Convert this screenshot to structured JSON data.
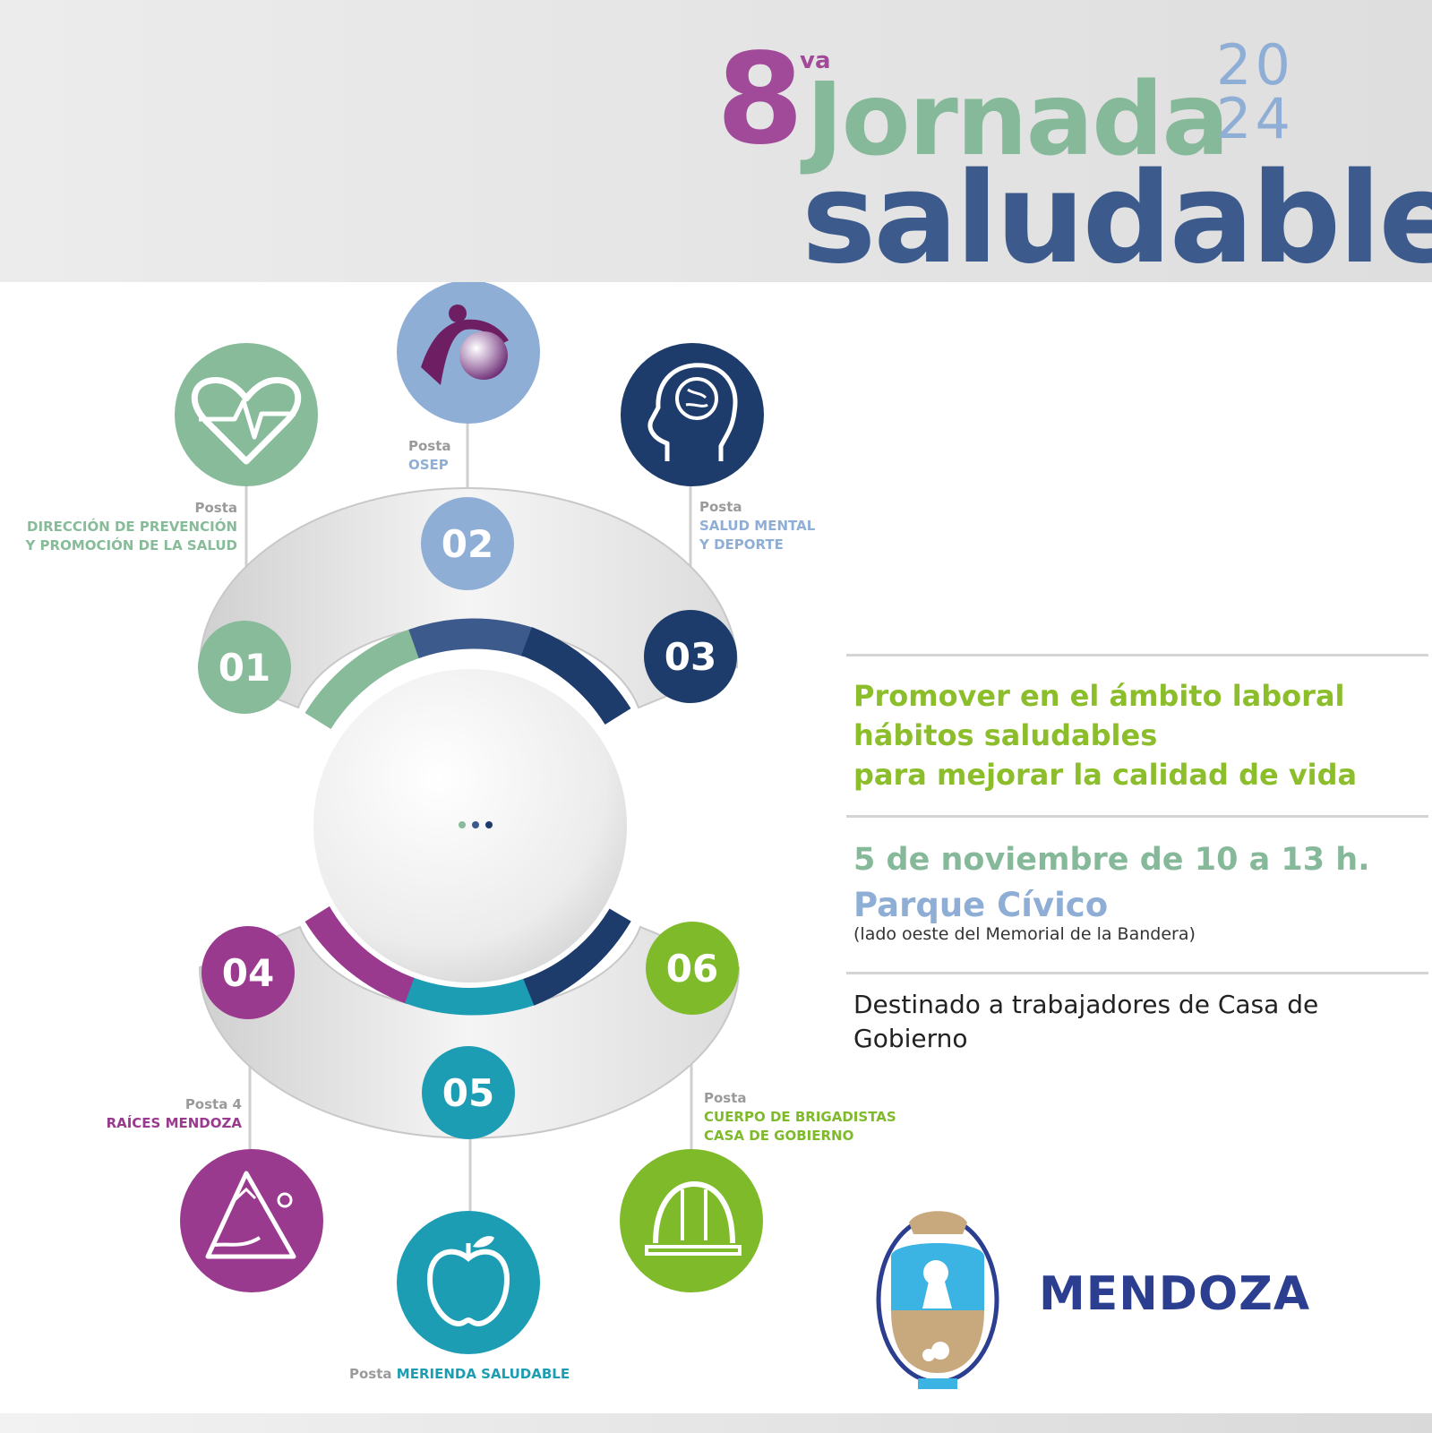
{
  "header": {
    "number": "8",
    "ordinal": "va",
    "title_line1": "Jornada",
    "year_top": "20",
    "year_bottom": "24",
    "title_line2": "saludable"
  },
  "colors": {
    "green": "#87bb99",
    "lightblue": "#8faed6",
    "navy": "#1d3b6b",
    "purple": "#993a8f",
    "teal": "#1c9db3",
    "lime": "#7fba2a",
    "title_blue": "#3d5a8c",
    "slogan_green": "#8cbe2b",
    "date_green": "#86b99a"
  },
  "stations": [
    {
      "number": "01",
      "posta": "Posta",
      "name_line1": "DIRECCIÓN DE PREVENCIÓN",
      "name_line2": "Y PROMOCIÓN DE LA SALUD",
      "icon": "heart-pulse-icon"
    },
    {
      "number": "02",
      "posta": "Posta",
      "name_line1": "OSEP",
      "name_line2": "",
      "icon": "osep-logo-icon"
    },
    {
      "number": "03",
      "posta": "Posta",
      "name_line1": "SALUD MENTAL",
      "name_line2": "Y DEPORTE",
      "icon": "brain-head-icon"
    },
    {
      "number": "04",
      "posta": "Posta 4",
      "name_line1": "RAÍCES MENDOZA",
      "name_line2": "",
      "icon": "mountain-hand-icon"
    },
    {
      "number": "05",
      "posta": "Posta",
      "name_line1": "MERIENDA SALUDABLE",
      "name_line2": "",
      "icon": "apple-icon"
    },
    {
      "number": "06",
      "posta": "Posta",
      "name_line1": "CUERPO DE BRIGADISTAS",
      "name_line2": "CASA DE GOBIERNO",
      "icon": "hard-hat-icon"
    }
  ],
  "info": {
    "slogan_line1": "Promover en el ámbito laboral",
    "slogan_line2": "hábitos saludables",
    "slogan_line3": "para mejorar la calidad de vida",
    "date": "5 de noviembre de 10 a 13 h.",
    "place": "Parque Cívico",
    "place_note": "(lado oeste del Memorial de la Bandera)",
    "audience": "Destinado a trabajadores de Casa de Gobierno"
  },
  "brand": {
    "name": "MENDOZA",
    "icon": "mendoza-coat-of-arms-icon"
  }
}
